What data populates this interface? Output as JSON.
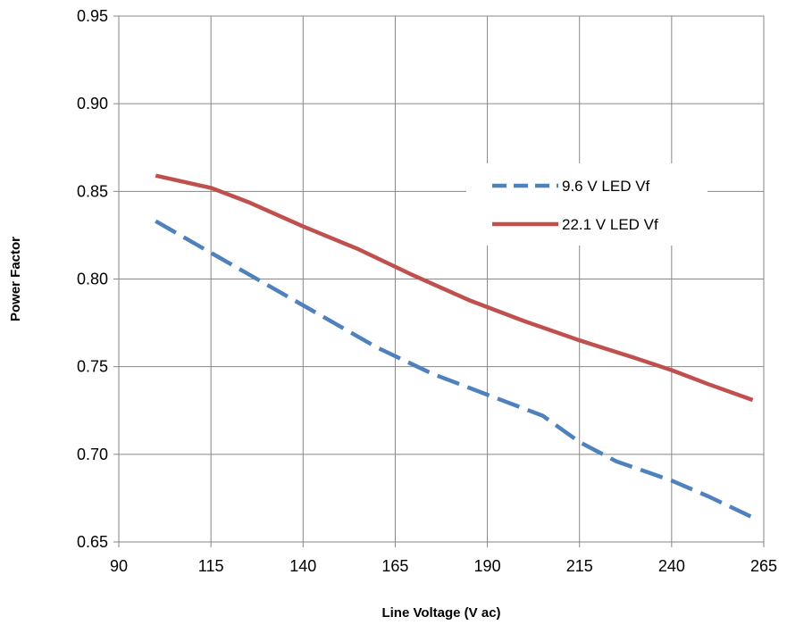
{
  "chart_data": {
    "type": "line",
    "title": "",
    "xlabel": "Line Voltage (V ac)",
    "ylabel": "Power Factor",
    "xlim": [
      90,
      265
    ],
    "ylim": [
      0.65,
      0.95
    ],
    "x_ticks": [
      "90",
      "115",
      "140",
      "165",
      "190",
      "215",
      "240",
      "265"
    ],
    "y_ticks": [
      "0.65",
      "0.70",
      "0.75",
      "0.80",
      "0.85",
      "0.90",
      "0.95"
    ],
    "grid": true,
    "legend_position": "right",
    "series": [
      {
        "name": "9.6 V LED Vf",
        "color": "#4F81BD",
        "style": "dashed",
        "x": [
          100,
          115,
          130,
          145,
          160,
          175,
          190,
          205,
          215,
          225,
          240,
          250,
          262
        ],
        "y": [
          0.833,
          0.815,
          0.797,
          0.779,
          0.761,
          0.746,
          0.734,
          0.722,
          0.707,
          0.696,
          0.685,
          0.676,
          0.664
        ]
      },
      {
        "name": "22.1 V LED Vf",
        "color": "#C0504D",
        "style": "solid",
        "x": [
          100,
          115,
          125,
          140,
          155,
          170,
          185,
          200,
          215,
          230,
          240,
          250,
          262
        ],
        "y": [
          0.859,
          0.852,
          0.844,
          0.83,
          0.817,
          0.802,
          0.788,
          0.776,
          0.765,
          0.755,
          0.748,
          0.74,
          0.731
        ]
      }
    ]
  }
}
